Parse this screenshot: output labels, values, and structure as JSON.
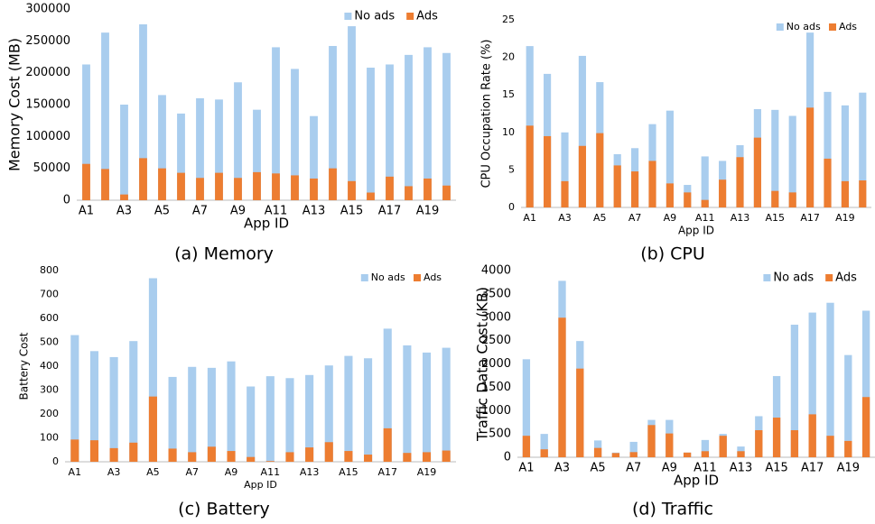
{
  "chart_data": [
    {
      "type": "bar",
      "overlap": true,
      "caption": "(a) Memory",
      "x_label": "App ID",
      "y_label": "Memory Cost (MB)",
      "categories": [
        "A1",
        null,
        "A3",
        null,
        "A5",
        null,
        "A7",
        null,
        "A9",
        null,
        "A11",
        null,
        "A13",
        null,
        "A15",
        null,
        "A17",
        null,
        "A19",
        null
      ],
      "series": [
        {
          "name": "No ads",
          "color": "#a9cdee",
          "values": [
            213000,
            263000,
            150000,
            276000,
            165000,
            136000,
            160000,
            158000,
            185000,
            142000,
            240000,
            206000,
            132000,
            242000,
            273000,
            208000,
            213000,
            228000,
            240000,
            231000
          ]
        },
        {
          "name": "Ads",
          "color": "#ed7d31",
          "values": [
            57000,
            49000,
            9000,
            66000,
            50000,
            43000,
            35000,
            43000,
            35000,
            44000,
            42000,
            39000,
            34000,
            50000,
            30000,
            12000,
            37000,
            22000,
            34000,
            23000
          ]
        }
      ],
      "ylim": [
        0,
        300000
      ],
      "yticks": [
        0,
        50000,
        100000,
        150000,
        200000,
        250000,
        300000
      ],
      "grid": false,
      "legend": "upper right"
    },
    {
      "type": "bar",
      "overlap": true,
      "caption": "(b) CPU",
      "x_label": "App ID",
      "y_label": "CPU Occupation Rate (%)",
      "categories": [
        "A1",
        null,
        "A3",
        null,
        "A5",
        null,
        "A7",
        null,
        "A9",
        null,
        "A11",
        null,
        "A13",
        null,
        "A15",
        null,
        "A17",
        null,
        "A19",
        null
      ],
      "series": [
        {
          "name": "No ads",
          "color": "#a9cdee",
          "values": [
            21.5,
            17.8,
            10,
            20.2,
            16.7,
            7.1,
            7.9,
            11.1,
            12.9,
            3,
            6.8,
            6.2,
            8.3,
            13.1,
            13,
            12.2,
            23.3,
            15.4,
            13.6,
            15.3
          ]
        },
        {
          "name": "Ads",
          "color": "#ed7d31",
          "values": [
            10.9,
            9.5,
            3.5,
            8.2,
            9.9,
            5.6,
            4.8,
            6.2,
            3.2,
            2,
            1,
            3.7,
            6.7,
            9.3,
            2.2,
            2,
            13.3,
            6.5,
            3.5,
            3.6
          ]
        }
      ],
      "ylim": [
        0,
        25
      ],
      "yticks": [
        0,
        5,
        10,
        15,
        20,
        25
      ],
      "grid": false,
      "legend": "upper right"
    },
    {
      "type": "bar",
      "overlap": true,
      "caption": "(c) Battery",
      "x_label": "App ID",
      "y_label": "Battery Cost",
      "categories": [
        "A1",
        null,
        "A3",
        null,
        "A5",
        null,
        "A7",
        null,
        "A9",
        null,
        "A11",
        null,
        "A13",
        null,
        "A15",
        null,
        "A17",
        null,
        "A19",
        null
      ],
      "series": [
        {
          "name": "No ads",
          "color": "#a9cdee",
          "values": [
            530,
            463,
            438,
            505,
            768,
            355,
            397,
            393,
            420,
            315,
            358,
            350,
            363,
            403,
            443,
            433,
            557,
            487,
            457,
            477
          ]
        },
        {
          "name": "Ads",
          "color": "#ed7d31",
          "values": [
            93,
            90,
            57,
            80,
            273,
            55,
            40,
            63,
            45,
            20,
            3,
            40,
            60,
            82,
            45,
            30,
            140,
            37,
            40,
            47
          ]
        }
      ],
      "ylim": [
        0,
        800
      ],
      "yticks": [
        0,
        100,
        200,
        300,
        400,
        500,
        600,
        700,
        800
      ],
      "grid": false,
      "legend": "upper right"
    },
    {
      "type": "bar",
      "overlap": true,
      "caption": "(d) Traffic",
      "x_label": "App ID",
      "y_label": "Traffic Data Cost (KB)",
      "categories": [
        "A1",
        null,
        "A3",
        null,
        "A5",
        null,
        "A7",
        null,
        "A9",
        null,
        "A11",
        null,
        "A13",
        null,
        "A15",
        null,
        "A17",
        null,
        "A19",
        null
      ],
      "series": [
        {
          "name": "No ads",
          "color": "#a9cdee",
          "values": [
            2100,
            500,
            3780,
            2490,
            360,
            100,
            330,
            800,
            800,
            100,
            370,
            500,
            230,
            880,
            1740,
            2840,
            3100,
            3310,
            2190,
            3140
          ]
        },
        {
          "name": "Ads",
          "color": "#ed7d31",
          "values": [
            460,
            170,
            2990,
            1900,
            200,
            90,
            110,
            690,
            510,
            100,
            130,
            460,
            130,
            580,
            850,
            580,
            920,
            460,
            350,
            1290
          ]
        }
      ],
      "ylim": [
        0,
        4000
      ],
      "yticks": [
        0,
        500,
        1000,
        1500,
        2000,
        2500,
        3000,
        3500,
        4000
      ],
      "grid": false,
      "legend": "upper right"
    }
  ]
}
